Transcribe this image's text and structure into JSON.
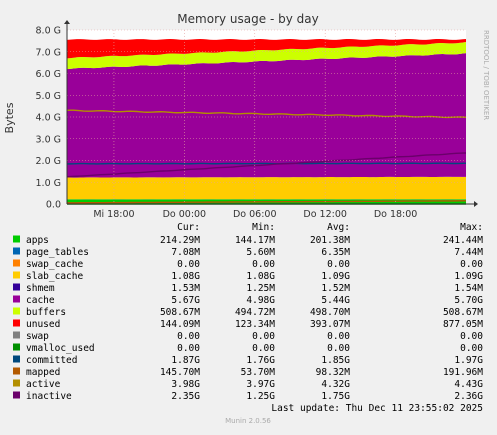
{
  "chart_data": {
    "type": "area",
    "title": "Memory usage - by day",
    "ylabel": "Bytes",
    "side_label": "RRDTOOL / TOBI OETIKER",
    "ylim": [
      0,
      8.0
    ],
    "y_unit": "G",
    "y_ticks": [
      "0.0",
      "1.0 G",
      "2.0 G",
      "3.0 G",
      "4.0 G",
      "5.0 G",
      "6.0 G",
      "7.0 G",
      "8.0 G"
    ],
    "x_ticks": [
      "Mi 18:00",
      "Do 00:00",
      "Do 06:00",
      "Do 12:00",
      "Do 18:00"
    ],
    "x_tick_hours": [
      18,
      24,
      30,
      36,
      42
    ],
    "x_range_hours": [
      14,
      48
    ],
    "grid": true,
    "legend_header": [
      "Cur:",
      "Min:",
      "Avg:",
      "Max:"
    ],
    "series": [
      {
        "name": "apps",
        "color": "#00cc00",
        "kind": "area",
        "cur": "214.29M",
        "min": "144.17M",
        "avg": "201.38M",
        "max": "241.44M",
        "start": 0.21,
        "end": 0.21
      },
      {
        "name": "page_tables",
        "color": "#0066b3",
        "kind": "area",
        "cur": "7.08M",
        "min": "5.60M",
        "avg": "6.35M",
        "max": "7.44M",
        "start": 0.007,
        "end": 0.007
      },
      {
        "name": "swap_cache",
        "color": "#ff8000",
        "kind": "area",
        "cur": "0.00",
        "min": "0.00",
        "avg": "0.00",
        "max": "0.00",
        "start": 0,
        "end": 0
      },
      {
        "name": "slab_cache",
        "color": "#ffcc00",
        "kind": "area",
        "cur": "1.08G",
        "min": "1.08G",
        "avg": "1.09G",
        "max": "1.09G",
        "start": 1.0,
        "end": 1.03
      },
      {
        "name": "shmem",
        "color": "#330099",
        "kind": "area",
        "cur": "1.53M",
        "min": "1.25M",
        "avg": "1.52M",
        "max": "1.54M",
        "start": 0.0015,
        "end": 0.0015
      },
      {
        "name": "cache",
        "color": "#990099",
        "kind": "area",
        "cur": "5.67G",
        "min": "4.98G",
        "avg": "5.44G",
        "max": "5.70G",
        "start": 5.0,
        "end": 5.67
      },
      {
        "name": "buffers",
        "color": "#ccff00",
        "kind": "area",
        "cur": "508.67M",
        "min": "494.72M",
        "avg": "498.70M",
        "max": "508.67M",
        "start": 0.495,
        "end": 0.509
      },
      {
        "name": "unused",
        "color": "#ff0000",
        "kind": "area",
        "cur": "144.09M",
        "min": "123.34M",
        "avg": "393.07M",
        "max": "877.05M",
        "start": 0.85,
        "end": 0.14
      },
      {
        "name": "swap",
        "color": "#808080",
        "kind": "area",
        "cur": "0.00",
        "min": "0.00",
        "avg": "0.00",
        "max": "0.00",
        "start": 0,
        "end": 0
      },
      {
        "name": "vmalloc_used",
        "color": "#008f00",
        "kind": "line",
        "cur": "0.00",
        "min": "0.00",
        "avg": "0.00",
        "max": "0.00",
        "start": 0,
        "end": 0
      },
      {
        "name": "committed",
        "color": "#00487d",
        "kind": "line",
        "cur": "1.87G",
        "min": "1.76G",
        "avg": "1.85G",
        "max": "1.97G",
        "start": 1.85,
        "end": 1.87
      },
      {
        "name": "mapped",
        "color": "#b35a00",
        "kind": "line",
        "cur": "145.70M",
        "min": "53.70M",
        "avg": "98.32M",
        "max": "191.96M",
        "start": 0.054,
        "end": 0.146
      },
      {
        "name": "active",
        "color": "#b38f00",
        "kind": "line",
        "cur": "3.98G",
        "min": "3.97G",
        "avg": "4.32G",
        "max": "4.43G",
        "start": 4.3,
        "end": 3.98
      },
      {
        "name": "inactive",
        "color": "#6b006b",
        "kind": "line",
        "cur": "2.35G",
        "min": "1.25G",
        "avg": "1.75G",
        "max": "2.36G",
        "start": 1.25,
        "end": 2.35
      }
    ]
  },
  "footer": {
    "last_update": "Last update: Thu Dec 11 23:55:02 2025",
    "munin": "Munin 2.0.56"
  }
}
